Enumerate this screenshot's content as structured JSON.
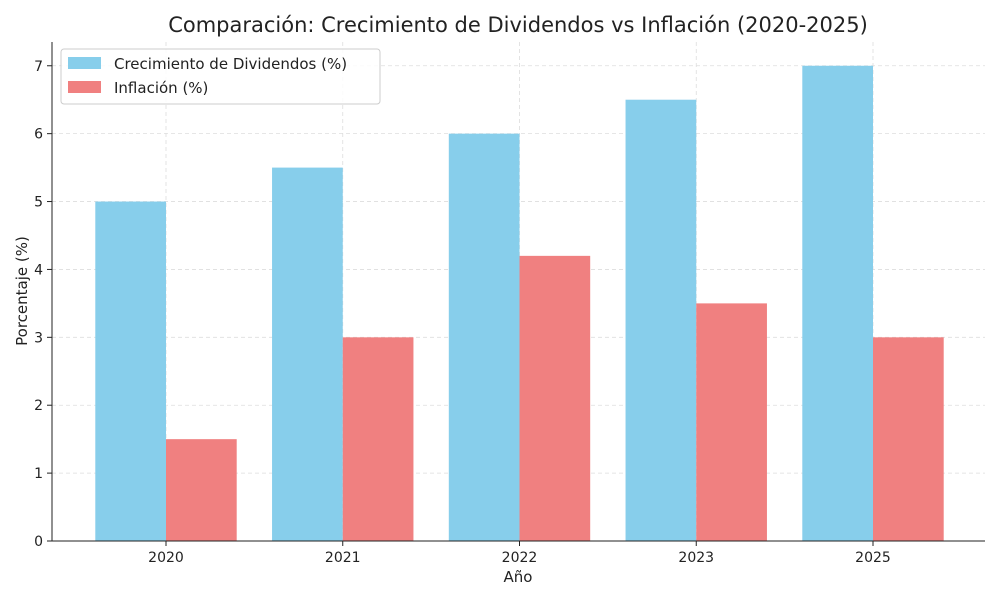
{
  "chart_data": {
    "type": "bar",
    "title": "Comparación: Crecimiento de Dividendos vs Inflación (2020-2025)",
    "xlabel": "Año",
    "ylabel": "Porcentaje (%)",
    "categories": [
      "2020",
      "2021",
      "2022",
      "2023",
      "2025"
    ],
    "series": [
      {
        "name": "Crecimiento de Dividendos (%)",
        "values": [
          5.0,
          5.5,
          6.0,
          6.5,
          7.0
        ],
        "color": "#87CEEB"
      },
      {
        "name": "Inflación (%)",
        "values": [
          1.5,
          3.0,
          4.2,
          3.5,
          3.0
        ],
        "color": "#F08080"
      }
    ],
    "ylim": [
      0,
      7.35
    ],
    "yticks": [
      "0",
      "1",
      "2",
      "3",
      "4",
      "5",
      "6",
      "7"
    ],
    "grid": true,
    "legend_position": "top-left"
  }
}
